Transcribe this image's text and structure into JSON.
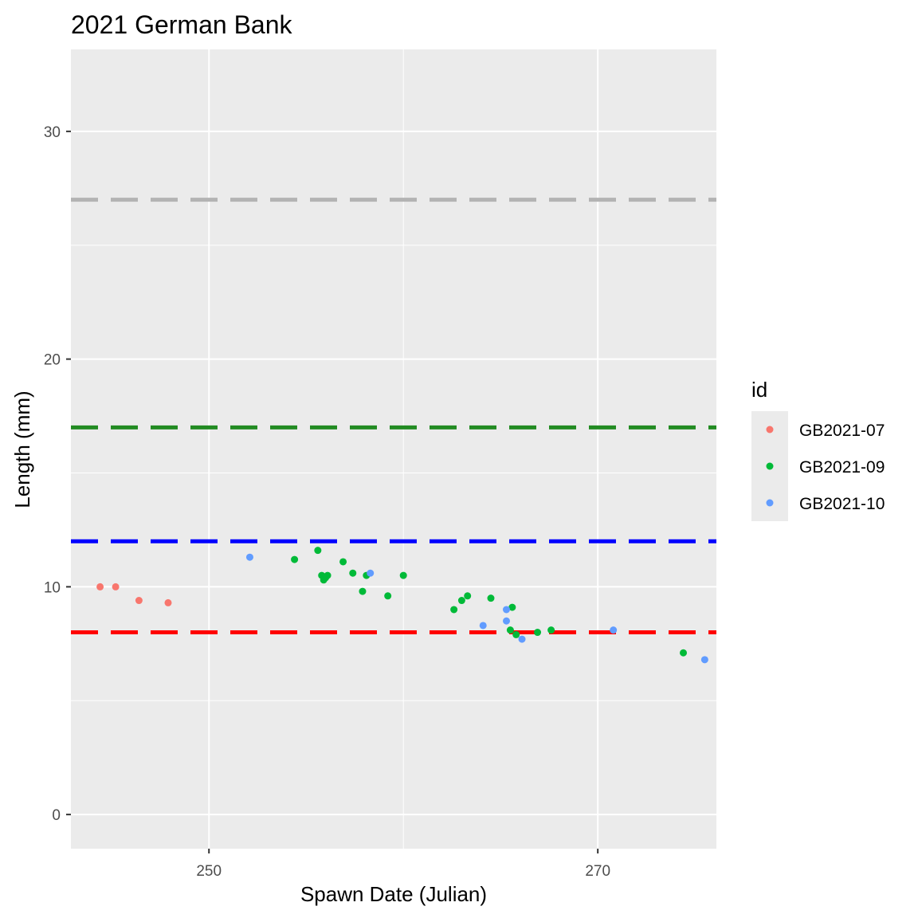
{
  "chart_data": {
    "type": "scatter",
    "title": "2021 German Bank",
    "xlabel": "Spawn Date (Julian)",
    "ylabel": "Length (mm)",
    "xlim": [
      242.9,
      276.1
    ],
    "ylim": [
      -1.5,
      33.6
    ],
    "x_ticks": [
      250,
      270
    ],
    "y_ticks": [
      0,
      10,
      20,
      30
    ],
    "grid": true,
    "legend": {
      "title": "id",
      "position": "right"
    },
    "colors": {
      "panel_bg": "#EBEBEB",
      "grid": "#FFFFFF"
    },
    "reference_lines": [
      {
        "y": 27,
        "color": "#B3B3B3",
        "style": "dashed"
      },
      {
        "y": 17,
        "color": "#228B22",
        "style": "dashed"
      },
      {
        "y": 12,
        "color": "#0000FF",
        "style": "dashed"
      },
      {
        "y": 8,
        "color": "#FF0000",
        "style": "dashed"
      }
    ],
    "series": [
      {
        "name": "GB2021-07",
        "color": "#F8766D",
        "points": [
          [
            244.4,
            10.0
          ],
          [
            245.2,
            10.0
          ],
          [
            246.4,
            9.4
          ],
          [
            247.9,
            9.3
          ]
        ]
      },
      {
        "name": "GB2021-09",
        "color": "#00BA38",
        "points": [
          [
            254.4,
            11.2
          ],
          [
            255.6,
            11.6
          ],
          [
            255.8,
            10.5
          ],
          [
            255.9,
            10.3
          ],
          [
            256.0,
            10.4
          ],
          [
            256.1,
            10.5
          ],
          [
            256.9,
            11.1
          ],
          [
            257.4,
            10.6
          ],
          [
            257.9,
            9.8
          ],
          [
            258.1,
            10.5
          ],
          [
            259.2,
            9.6
          ],
          [
            260.0,
            10.5
          ],
          [
            262.6,
            9.0
          ],
          [
            263.0,
            9.4
          ],
          [
            263.3,
            9.6
          ],
          [
            264.5,
            9.5
          ],
          [
            265.5,
            8.1
          ],
          [
            265.6,
            9.1
          ],
          [
            265.8,
            7.9
          ],
          [
            266.9,
            8.0
          ],
          [
            267.6,
            8.1
          ],
          [
            274.4,
            7.1
          ]
        ]
      },
      {
        "name": "GB2021-10",
        "color": "#619CFF",
        "points": [
          [
            252.1,
            11.3
          ],
          [
            258.3,
            10.6
          ],
          [
            264.1,
            8.3
          ],
          [
            265.3,
            9.0
          ],
          [
            265.3,
            8.5
          ],
          [
            266.1,
            7.7
          ],
          [
            270.8,
            8.1
          ],
          [
            275.5,
            6.8
          ]
        ]
      }
    ]
  }
}
